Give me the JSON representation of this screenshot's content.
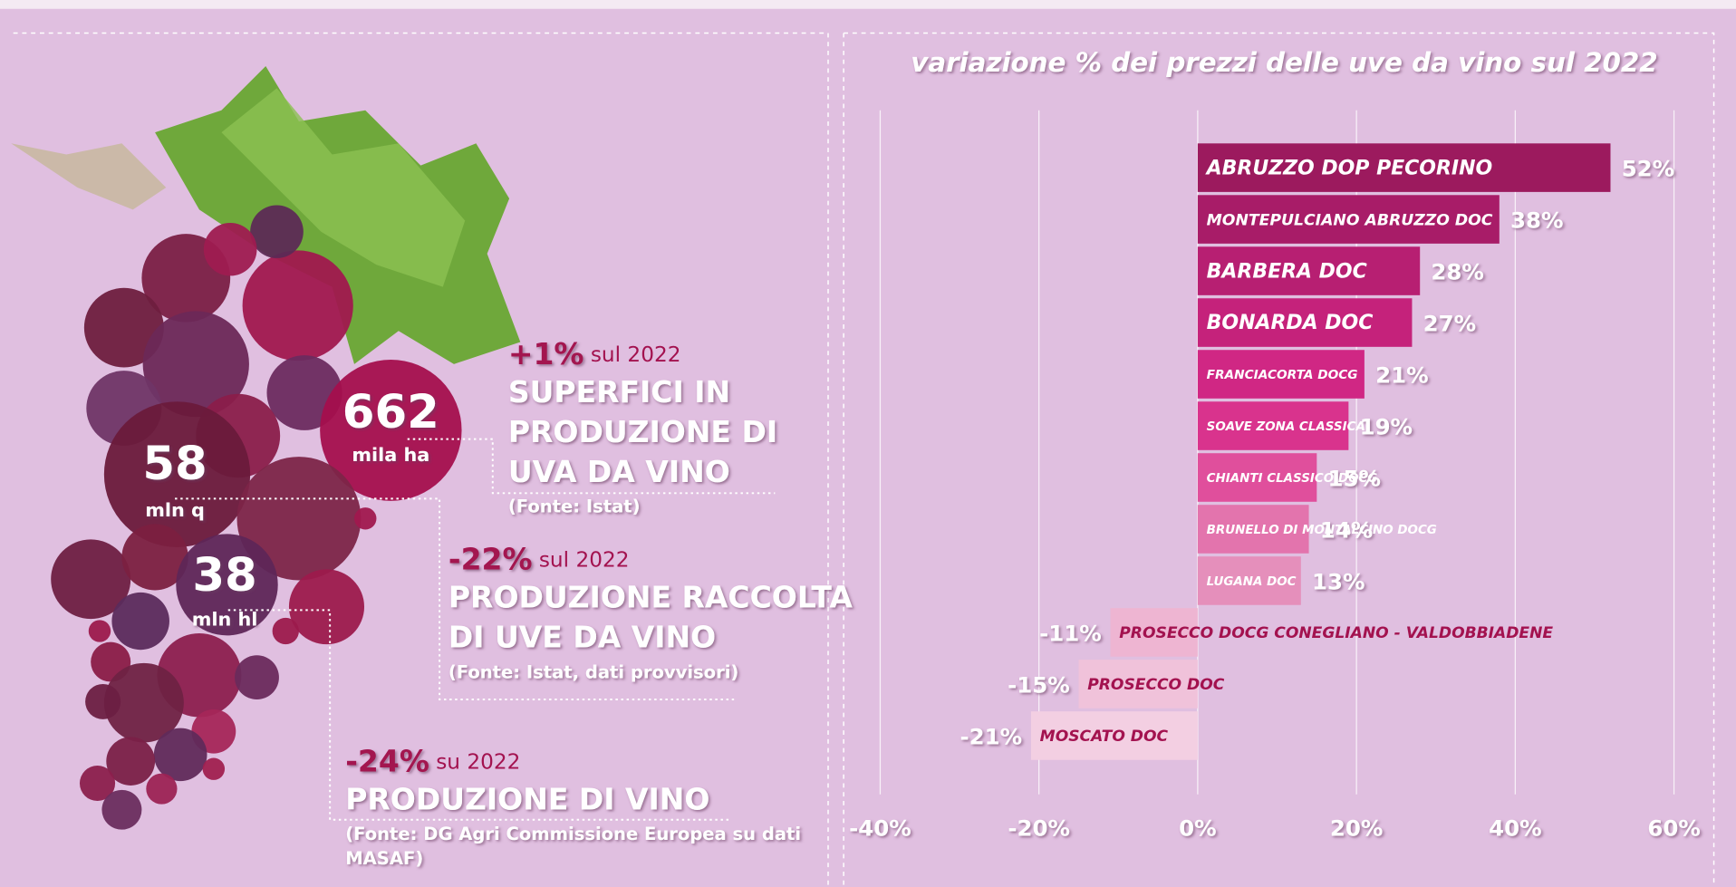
{
  "infographic": {
    "surface": {
      "number": "662",
      "unit": "mila ha",
      "change": "+1%",
      "change_ref": "sul 2022",
      "heading": [
        "SUPERFICI IN",
        "PRODUZIONE DI",
        "UVA DA VINO"
      ],
      "source": [
        "(Fonte: Istat)"
      ]
    },
    "harvest": {
      "number": "58",
      "unit": "mln q",
      "change": "-22%",
      "change_ref": "sul 2022",
      "heading": [
        "PRODUZIONE RACCOLTA",
        "DI UVE DA VINO"
      ],
      "source": [
        "(Fonte: Istat, dati provvisori)"
      ]
    },
    "wine": {
      "number": "38",
      "unit": "mln hl",
      "change": "-24%",
      "change_ref": "su 2022",
      "heading": [
        "PRODUZIONE DI VINO"
      ],
      "source": [
        "(Fonte: DG Agri Commissione Europea su dati",
        "MASAF)"
      ]
    }
  },
  "chart_data": {
    "type": "hbar",
    "title": "variazione % dei prezzi delle uve da vino sul 2022",
    "categories": [
      "ABRUZZO DOP PECORINO",
      "MONTEPULCIANO ABRUZZO DOC",
      "BARBERA DOC",
      "BONARDA DOC",
      "FRANCIACORTA DOCG",
      "SOAVE ZONA CLASSICA",
      "CHIANTI CLASSICO DOCG",
      "BRUNELLO DI MONTALCINO DOCG",
      "LUGANA DOC",
      "PROSECCO DOCG CONEGLIANO - VALDOBBIADENE",
      "PROSECCO DOC",
      "MOSCATO DOC"
    ],
    "values": [
      52,
      38,
      28,
      27,
      21,
      19,
      15,
      14,
      13,
      -11,
      -15,
      -21
    ],
    "value_labels": [
      "52%",
      "38%",
      "28%",
      "27%",
      "21%",
      "19%",
      "15%",
      "14%",
      "13%",
      "-11%",
      "-15%",
      "-21%"
    ],
    "colors": [
      "#9c1a5e",
      "#a81c68",
      "#b71f72",
      "#c5227b",
      "#d02784",
      "#d9338d",
      "#e04f9c",
      "#e374ad",
      "#e58fbb",
      "#eeb5d2",
      "#f0c2da",
      "#f3cfe2"
    ],
    "xlim": [
      -40,
      60
    ],
    "xticks": [
      {
        "value": -40,
        "label": "-40%"
      },
      {
        "value": -20,
        "label": "-20%"
      },
      {
        "value": 0,
        "label": "0%"
      },
      {
        "value": 20,
        "label": "20%"
      },
      {
        "value": 40,
        "label": "40%"
      },
      {
        "value": 60,
        "label": "60%"
      }
    ],
    "grid": true
  }
}
